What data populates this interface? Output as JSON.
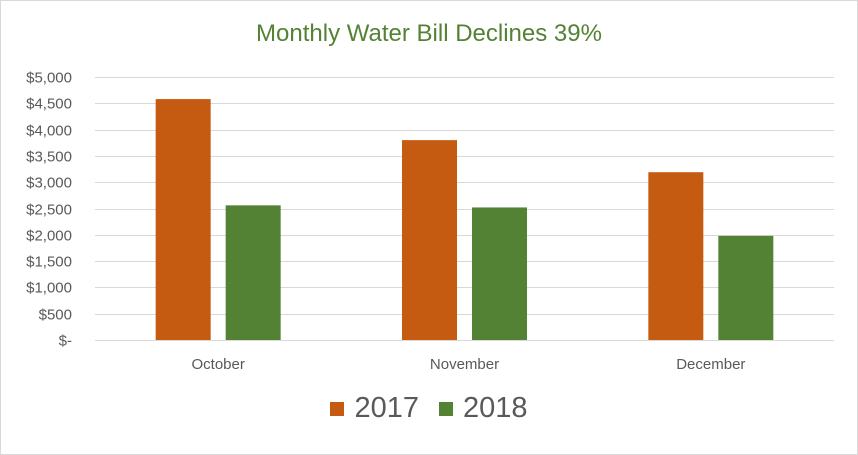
{
  "chart_data": {
    "type": "bar",
    "title": "Monthly Water Bill Declines 39%",
    "categories": [
      "October",
      "November",
      "December"
    ],
    "series": [
      {
        "name": "2017",
        "color": "#c55a11",
        "values": [
          4580,
          3800,
          3190
        ]
      },
      {
        "name": "2018",
        "color": "#548235",
        "values": [
          2560,
          2520,
          1980
        ]
      }
    ],
    "ylim": [
      0,
      5000
    ],
    "yticks": [
      0,
      500,
      1000,
      1500,
      2000,
      2500,
      3000,
      3500,
      4000,
      4500,
      5000
    ],
    "ytick_labels": [
      "$-",
      "$500",
      "$1,000",
      "$1,500",
      "$2,000",
      "$2,500",
      "$3,000",
      "$3,500",
      "$4,000",
      "$4,500",
      "$5,000"
    ],
    "xlabel": "",
    "ylabel": "",
    "grid": true,
    "legend_position": "bottom",
    "colors": {
      "title": "#548235",
      "gridline": "#d9d9d9",
      "text": "#595959"
    }
  }
}
